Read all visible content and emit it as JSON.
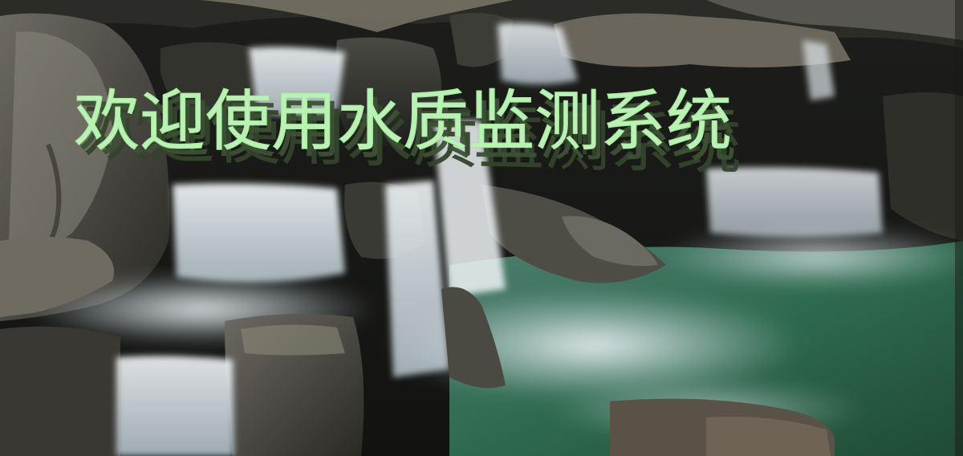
{
  "welcome_banner": {
    "title": "欢迎使用水质监测系统",
    "text_color": "#b9f3b3",
    "extrusion_color": "#3c5234"
  },
  "background": {
    "icon": "waterfall-landscape-photo",
    "colors": {
      "rock": "#3b3a35",
      "water_white": "#e6eef2",
      "pool_green": "#2f6a4e"
    }
  }
}
